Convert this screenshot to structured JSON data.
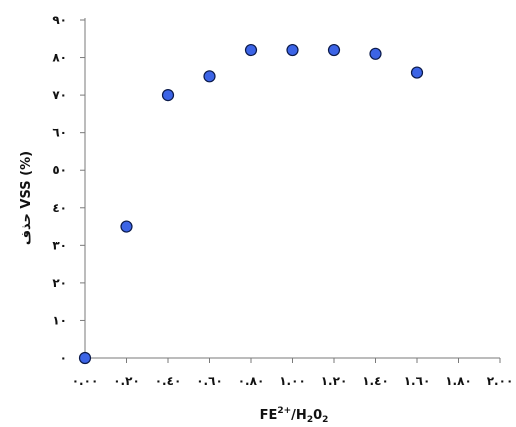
{
  "chart_data": {
    "type": "scatter",
    "title": "",
    "xlabel": {
      "base": "FE",
      "superscript": "2+",
      "rest": "/H",
      "sub1": "2",
      "mid": "0",
      "sub2": "2"
    },
    "ylabel": "حذف VSS (%)",
    "xlim": [
      0,
      2.0
    ],
    "ylim": [
      0,
      90
    ],
    "x_ticks": [
      0,
      0.2,
      0.4,
      0.6,
      0.8,
      1.0,
      1.2,
      1.4,
      1.6,
      1.8,
      2.0
    ],
    "x_tick_labels": [
      "٠.٠٠",
      "٠.٢٠",
      "٠.٤٠",
      "٠.٦٠",
      "٠.٨٠",
      "١.٠٠",
      "١.٢٠",
      "١.٤٠",
      "١.٦٠",
      "١.٨٠",
      "٢.٠٠"
    ],
    "y_ticks": [
      0,
      10,
      20,
      30,
      40,
      50,
      60,
      70,
      80,
      90
    ],
    "y_tick_labels": [
      "٠",
      "١٠",
      "٢٠",
      "٣٠",
      "٤٠",
      "٥٠",
      "٦٠",
      "٧٠",
      "٨٠",
      "٩٠"
    ],
    "grid": false,
    "legend": "none",
    "series": [
      {
        "x": [
          0.0,
          0.2,
          0.4,
          0.6,
          0.8,
          1.0,
          1.2,
          1.4,
          1.6
        ],
        "y": [
          0,
          35,
          70,
          75,
          82,
          82,
          82,
          81,
          76
        ]
      }
    ],
    "colors": {
      "marker_fill": "#3c64e6",
      "marker_stroke": "#0b1a4a",
      "axis": "#7a7a7a"
    }
  }
}
